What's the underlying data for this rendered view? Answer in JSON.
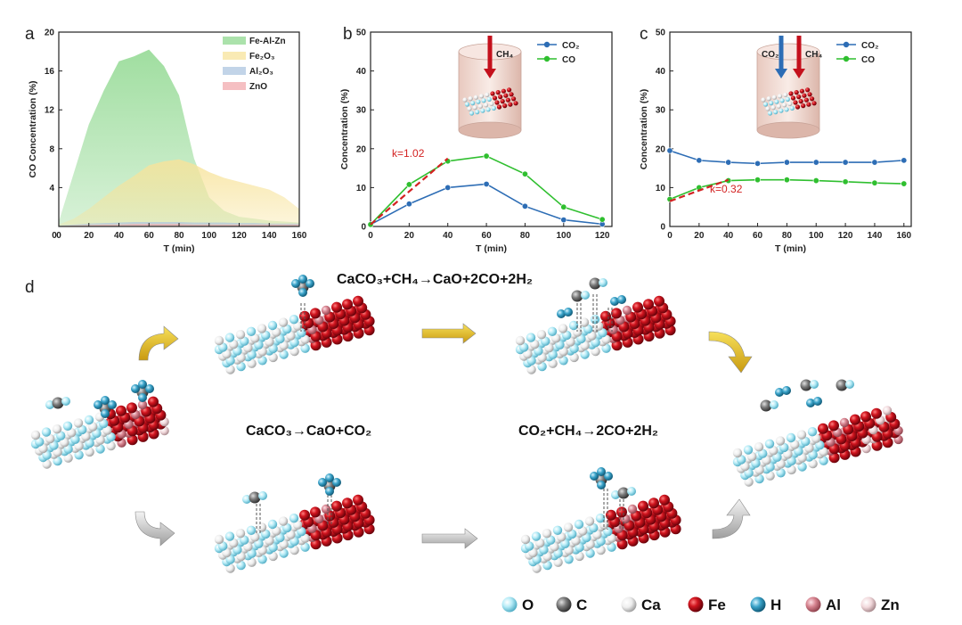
{
  "colors": {
    "co2": "#2d6db5",
    "co": "#2fbf2f",
    "fit": "#d32222",
    "O": "#a9e3f0",
    "C": "#6a6a6a",
    "Ca": "#e8e8e8",
    "Fe": "#c4101c",
    "H": "#3aa3c9",
    "Al": "#d6838f",
    "Zn": "#eccfd2",
    "arrow_gold": "#e6c21e",
    "arrow_grey": "#bdbdbd"
  },
  "chart_data": [
    {
      "panel": "a",
      "type": "area",
      "title": "",
      "xlabel": "T  (min)",
      "ylabel": "CO Concentration (%)",
      "xlim": [
        0,
        160
      ],
      "ylim": [
        0,
        20
      ],
      "xticks": [
        0,
        20,
        40,
        60,
        80,
        100,
        120,
        140,
        160
      ],
      "yticks": [
        4,
        8,
        12,
        16,
        20
      ],
      "x": [
        0,
        10,
        20,
        30,
        40,
        50,
        60,
        70,
        80,
        90,
        100,
        110,
        120,
        130,
        140,
        150,
        160
      ],
      "series": [
        {
          "name": "Fe-Al-Zn",
          "color": "#8fd88f",
          "values": [
            0.5,
            5.5,
            10.5,
            14.0,
            17.0,
            17.5,
            18.2,
            16.5,
            13.5,
            7.0,
            3.0,
            1.6,
            1.0,
            0.8,
            0.6,
            0.5,
            0.4
          ]
        },
        {
          "name": "Fe2O3",
          "color": "#f7e39b",
          "values": [
            0.2,
            0.8,
            1.8,
            3.0,
            4.2,
            5.2,
            6.3,
            6.7,
            6.9,
            6.4,
            5.6,
            5.0,
            4.6,
            4.2,
            3.8,
            3.0,
            1.8
          ]
        },
        {
          "name": "Al2O3",
          "color": "#aec6e0",
          "values": [
            0.1,
            0.2,
            0.3,
            0.35,
            0.4,
            0.45,
            0.45,
            0.45,
            0.45,
            0.4,
            0.4,
            0.4,
            0.35,
            0.35,
            0.3,
            0.3,
            0.3
          ]
        },
        {
          "name": "ZnO",
          "color": "#f2a9ae",
          "values": [
            0.05,
            0.1,
            0.15,
            0.2,
            0.2,
            0.25,
            0.25,
            0.25,
            0.25,
            0.2,
            0.2,
            0.2,
            0.2,
            0.2,
            0.2,
            0.2,
            0.2
          ]
        }
      ],
      "legend": [
        "Fe-Al-Zn",
        "Fe₂O₃",
        "Al₂O₃",
        "ZnO"
      ]
    },
    {
      "panel": "b",
      "type": "line",
      "xlabel": "T (min)",
      "ylabel": "Concentration (%)",
      "xlim": [
        0,
        125
      ],
      "ylim": [
        0,
        50
      ],
      "xticks": [
        0,
        20,
        40,
        60,
        80,
        100,
        120
      ],
      "yticks": [
        0,
        10,
        20,
        30,
        40,
        50
      ],
      "x": [
        0,
        20,
        40,
        60,
        80,
        100,
        120
      ],
      "series": [
        {
          "name": "CO₂",
          "color": "#2d6db5",
          "values": [
            0.5,
            5.8,
            10.0,
            10.9,
            5.2,
            1.7,
            0.6
          ]
        },
        {
          "name": "CO",
          "color": "#2fbf2f",
          "values": [
            0.5,
            10.8,
            16.8,
            18.1,
            13.5,
            5.0,
            1.8
          ]
        }
      ],
      "fit_line": {
        "x": [
          0,
          40
        ],
        "y": [
          0.5,
          17.5
        ],
        "label": "k=1.02"
      },
      "inset_gas": [
        "CH₄"
      ]
    },
    {
      "panel": "c",
      "type": "line",
      "xlabel": "T (min)",
      "ylabel": "Concentration (%)",
      "xlim": [
        0,
        165
      ],
      "ylim": [
        0,
        50
      ],
      "xticks": [
        0,
        20,
        40,
        60,
        80,
        100,
        120,
        140,
        160
      ],
      "yticks": [
        0,
        10,
        20,
        30,
        40,
        50
      ],
      "x": [
        0,
        20,
        40,
        60,
        80,
        100,
        120,
        140,
        160
      ],
      "series": [
        {
          "name": "CO₂",
          "color": "#2d6db5",
          "values": [
            19.5,
            17.0,
            16.5,
            16.2,
            16.5,
            16.5,
            16.5,
            16.5,
            17.0
          ]
        },
        {
          "name": "CO",
          "color": "#2fbf2f",
          "values": [
            7.0,
            10.0,
            11.8,
            12.0,
            12.0,
            11.8,
            11.5,
            11.2,
            11.0
          ]
        }
      ],
      "fit_line": {
        "x": [
          0,
          40
        ],
        "y": [
          6.5,
          12.0
        ],
        "label": "k=0.32"
      },
      "inset_gas": [
        "CO₂",
        "CH₄"
      ]
    }
  ],
  "panel_letters": {
    "a": "a",
    "b": "b",
    "c": "c",
    "d": "d"
  },
  "scheme": {
    "eq_top": "CaCO₃+CH₄→CaO+2CO+2H₂",
    "eq_mid_left": "CaCO₃→CaO+CO₂",
    "eq_mid_right": "CO₂+CH₄→2CO+2H₂"
  },
  "atom_legend": [
    {
      "label": "O",
      "key": "O"
    },
    {
      "label": "C",
      "key": "C"
    },
    {
      "label": "Ca",
      "key": "Ca"
    },
    {
      "label": "Fe",
      "key": "Fe"
    },
    {
      "label": "H",
      "key": "H"
    },
    {
      "label": "Al",
      "key": "Al"
    },
    {
      "label": "Zn",
      "key": "Zn"
    }
  ]
}
